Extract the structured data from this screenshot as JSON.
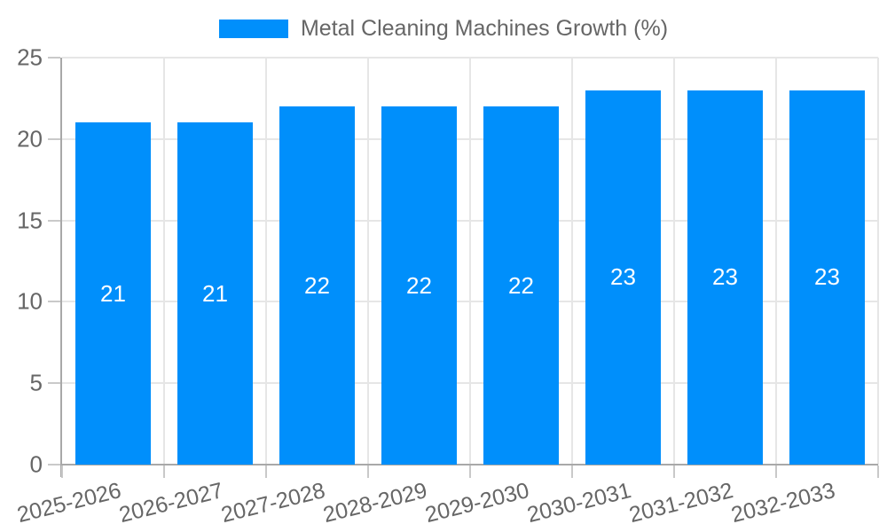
{
  "chart_data": {
    "type": "bar",
    "title": "Metal Cleaning Machines Growth (%)",
    "legend_position": "top",
    "categories": [
      "2025-2026",
      "2026-2027",
      "2027-2028",
      "2028-2029",
      "2029-2030",
      "2030-2031",
      "2031-2032",
      "2032-2033"
    ],
    "values": [
      21,
      21,
      22,
      22,
      22,
      23,
      23,
      23
    ],
    "value_labels": [
      "21",
      "21",
      "22",
      "22",
      "22",
      "23",
      "23",
      "23"
    ],
    "ylim": [
      0,
      25
    ],
    "yticks": [
      0,
      5,
      10,
      15,
      20,
      25
    ],
    "grid": true,
    "xlabel": "",
    "ylabel": "",
    "colors": {
      "bar": "#008FFB",
      "bar_value_text": "#ffffff",
      "axis_text": "#666666",
      "gridline": "#e6e6e6",
      "axis_line": "#a8a8a8",
      "tick_mark": "#c9c9c9",
      "background": "#ffffff"
    }
  }
}
